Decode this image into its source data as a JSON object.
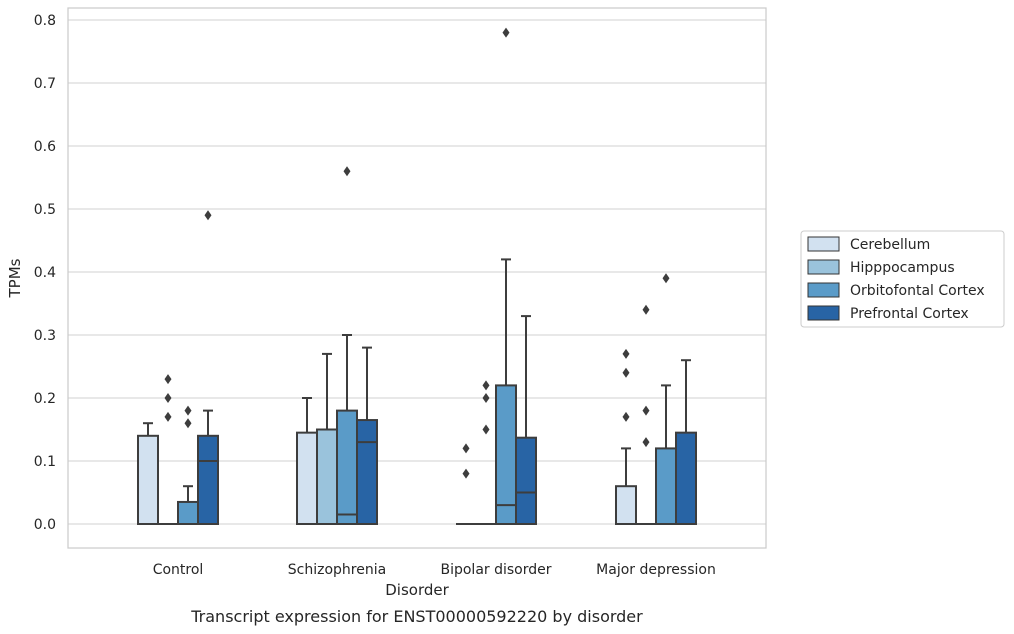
{
  "chart_data": {
    "type": "box",
    "title": "",
    "caption": "Transcript expression for ENST00000592220 by disorder",
    "xlabel": "Disorder",
    "ylabel": "TPMs",
    "ylim": [
      -0.04,
      0.82
    ],
    "yticks": [
      0.0,
      0.1,
      0.2,
      0.3,
      0.4,
      0.5,
      0.6,
      0.7,
      0.8
    ],
    "ytick_labels": [
      "0.0",
      "0.1",
      "0.2",
      "0.3",
      "0.4",
      "0.5",
      "0.6",
      "0.7",
      "0.8"
    ],
    "grid": true,
    "legend_position": "right",
    "categories": [
      "Control",
      "Schizophrenia",
      "Bipolar disorder",
      "Major depression"
    ],
    "series": [
      {
        "name": "Cerebellum",
        "color": "#d2e1f0",
        "boxes": [
          {
            "q1": 0.0,
            "median": 0.0,
            "q3": 0.14,
            "whisker_low": 0.0,
            "whisker_high": 0.16,
            "outliers": []
          },
          {
            "q1": 0.0,
            "median": 0.0,
            "q3": 0.145,
            "whisker_low": 0.0,
            "whisker_high": 0.2,
            "outliers": []
          },
          {
            "q1": 0.0,
            "median": 0.0,
            "q3": 0.0,
            "whisker_low": 0.0,
            "whisker_high": 0.0,
            "outliers": [
              0.08,
              0.12
            ]
          },
          {
            "q1": 0.0,
            "median": 0.0,
            "q3": 0.06,
            "whisker_low": 0.0,
            "whisker_high": 0.12,
            "outliers": [
              0.17,
              0.24,
              0.27
            ]
          }
        ]
      },
      {
        "name": "Hipppocampus",
        "color": "#9ac3dc",
        "boxes": [
          {
            "q1": 0.0,
            "median": 0.0,
            "q3": 0.0,
            "whisker_low": 0.0,
            "whisker_high": 0.0,
            "outliers": [
              0.17,
              0.2,
              0.23
            ]
          },
          {
            "q1": 0.0,
            "median": 0.0,
            "q3": 0.15,
            "whisker_low": 0.0,
            "whisker_high": 0.27,
            "outliers": []
          },
          {
            "q1": 0.0,
            "median": 0.0,
            "q3": 0.0,
            "whisker_low": 0.0,
            "whisker_high": 0.0,
            "outliers": [
              0.15,
              0.2,
              0.22
            ]
          },
          {
            "q1": 0.0,
            "median": 0.0,
            "q3": 0.0,
            "whisker_low": 0.0,
            "whisker_high": 0.0,
            "outliers": [
              0.13,
              0.18,
              0.34
            ]
          }
        ]
      },
      {
        "name": "Orbitofontal Cortex",
        "color": "#5a9bc8",
        "boxes": [
          {
            "q1": 0.0,
            "median": 0.0,
            "q3": 0.035,
            "whisker_low": 0.0,
            "whisker_high": 0.06,
            "outliers": [
              0.16,
              0.18
            ]
          },
          {
            "q1": 0.0,
            "median": 0.015,
            "q3": 0.18,
            "whisker_low": 0.0,
            "whisker_high": 0.3,
            "outliers": [
              0.56
            ]
          },
          {
            "q1": 0.0,
            "median": 0.03,
            "q3": 0.22,
            "whisker_low": 0.0,
            "whisker_high": 0.42,
            "outliers": [
              0.78
            ]
          },
          {
            "q1": 0.0,
            "median": 0.0,
            "q3": 0.12,
            "whisker_low": 0.0,
            "whisker_high": 0.22,
            "outliers": [
              0.39
            ]
          }
        ]
      },
      {
        "name": "Prefrontal Cortex",
        "color": "#2864a5",
        "boxes": [
          {
            "q1": 0.0,
            "median": 0.1,
            "q3": 0.14,
            "whisker_low": 0.0,
            "whisker_high": 0.18,
            "outliers": [
              0.49
            ]
          },
          {
            "q1": 0.0,
            "median": 0.13,
            "q3": 0.165,
            "whisker_low": 0.0,
            "whisker_high": 0.28,
            "outliers": []
          },
          {
            "q1": 0.0,
            "median": 0.05,
            "q3": 0.137,
            "whisker_low": 0.0,
            "whisker_high": 0.33,
            "outliers": []
          },
          {
            "q1": 0.0,
            "median": 0.0,
            "q3": 0.145,
            "whisker_low": 0.0,
            "whisker_high": 0.26,
            "outliers": []
          }
        ]
      }
    ],
    "colors": {
      "edge": "#3d3d3d",
      "grid": "#d0d0d0",
      "frame": "#cccccc",
      "text": "#262626"
    }
  }
}
